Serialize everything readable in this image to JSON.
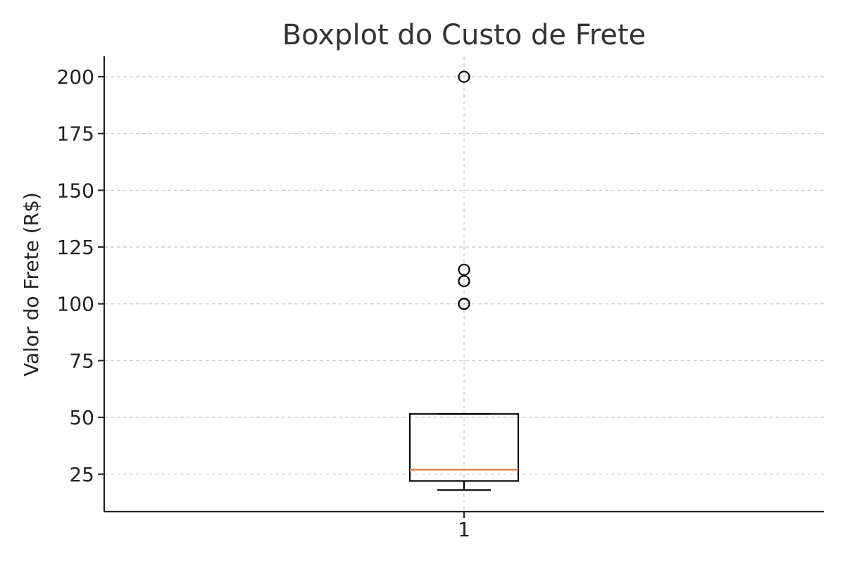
{
  "chart_data": {
    "type": "box",
    "title": "Boxplot do Custo de Frete",
    "xlabel": "",
    "ylabel": "Valor do Frete (R$)",
    "categories": [
      "1"
    ],
    "yticks": [
      25,
      50,
      75,
      100,
      125,
      150,
      175,
      200
    ],
    "ylim": [
      8.5,
      209
    ],
    "grid": true,
    "box": {
      "whisker_low": 18,
      "q1": 22,
      "median": 27,
      "q3": 51.5,
      "whisker_high": 51.5,
      "outliers": [
        100,
        110,
        115,
        200
      ]
    },
    "colors": {
      "median": "#dd8452",
      "box": "#000000",
      "grid": "#cccccc",
      "axis": "#222222"
    }
  }
}
